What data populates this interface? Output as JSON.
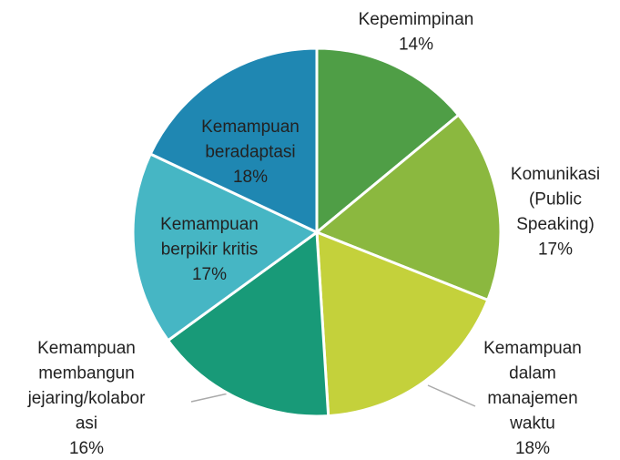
{
  "chart_data": {
    "type": "pie",
    "categories": [
      "Kepemimpinan",
      "Komunikasi (Public Speaking)",
      "Kemampuan dalam manajemen waktu",
      "Kemampuan membangun jejaring/kolaborasi",
      "Kemampuan berpikir kritis",
      "Kemampuan beradaptasi"
    ],
    "values": [
      14,
      17,
      18,
      16,
      17,
      18
    ],
    "value_labels": [
      "14%",
      "17%",
      "18%",
      "16%",
      "17%",
      "18%"
    ],
    "colors": [
      "#4f9e46",
      "#8bb83f",
      "#c4d13b",
      "#189a78",
      "#46b6c4",
      "#1f87b2"
    ]
  }
}
